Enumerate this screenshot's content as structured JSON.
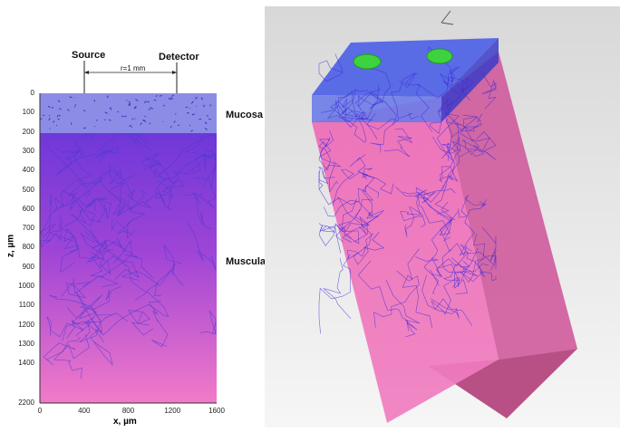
{
  "left": {
    "source_label": "Source",
    "detector_label": "Detector",
    "separation_label": "r=1 mm",
    "mucosa_label": "Mucosa",
    "muscular_label": "Muscular",
    "y_axis_label": "z, µm",
    "x_axis_label": "x, µm",
    "y_ticks": [
      "0",
      "100",
      "200",
      "300",
      "400",
      "500",
      "600",
      "700",
      "800",
      "900",
      "1000",
      "1100",
      "1200",
      "1300",
      "1400",
      "2200"
    ],
    "x_ticks": [
      "0",
      "400",
      "800",
      "1200",
      "1600"
    ],
    "colors": {
      "mucosa": "#8a86e0",
      "muscular_top": "#7a3ae0",
      "muscular_bottom": "#f070c0",
      "paths": "#4a3ad0"
    }
  },
  "right": {
    "colors": {
      "background_top": "#e2e2e2",
      "background_bottom": "#f4f4f4",
      "box_face": "#f070b8",
      "box_side": "#c85090",
      "top_layer": "#5a6ce8",
      "detectors": "#3fd23f",
      "paths": "#3a2ad8"
    },
    "icons": [
      "source-disk-icon",
      "detector-disk-icon"
    ]
  }
}
